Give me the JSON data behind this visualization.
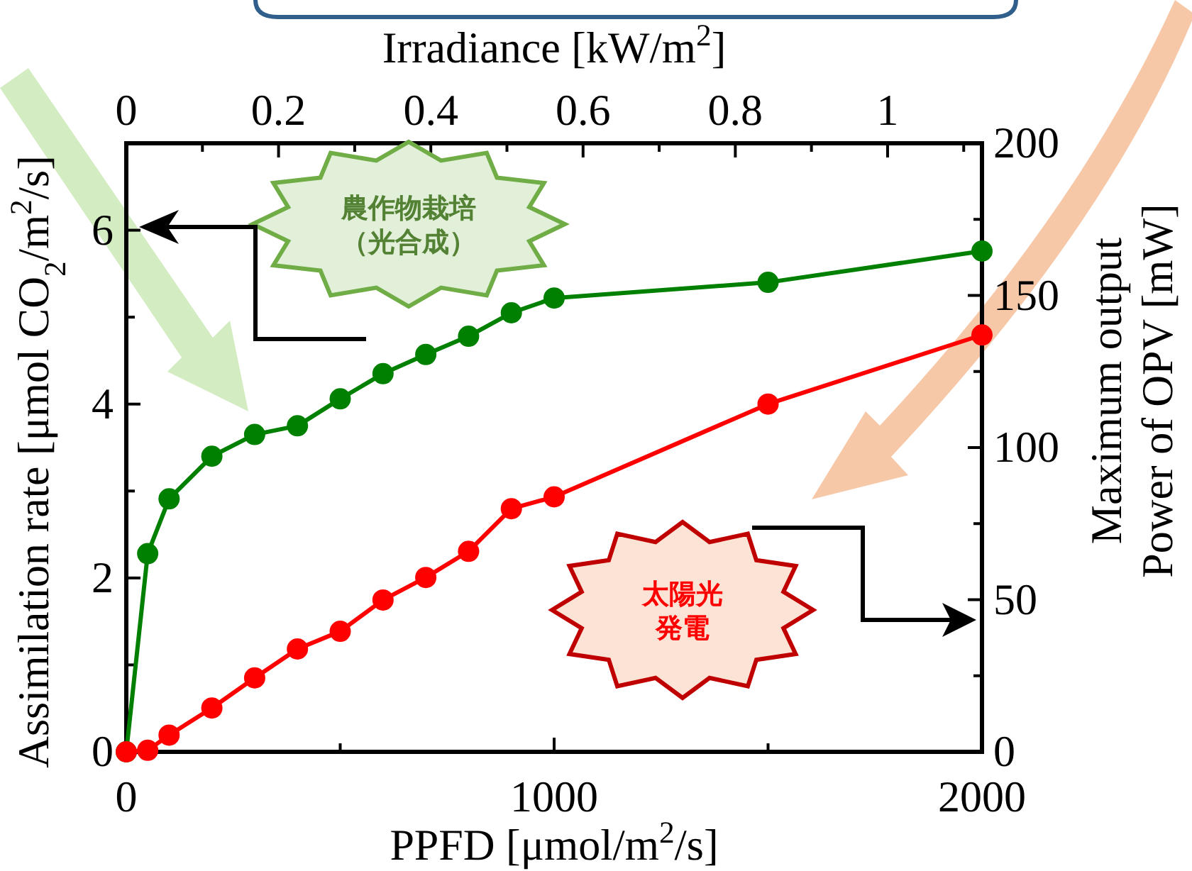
{
  "chart_data": {
    "type": "line",
    "xlabel": "PPFD [μmol/m$^{2}$/s]",
    "ylabel": "Assimilation rate [μmol CO$_{2}$/m$^{2}$/s]",
    "y2label": "Maximum output\nPower of OPV [mW]",
    "x2label": "Irradiance [kW/m$^{2}$]",
    "x": [
      0,
      50,
      100,
      200,
      300,
      400,
      500,
      600,
      700,
      800,
      900,
      1000,
      1500,
      2000
    ],
    "series": [
      {
        "color": "#008000",
        "values": [
          0,
          2.28,
          2.91,
          3.4,
          3.65,
          3.75,
          4.06,
          4.35,
          4.57,
          4.78,
          5.05,
          5.22,
          5.4,
          5.76
        ]
      },
      {
        "color": "#ff0000",
        "axis": "y2",
        "values": [
          0,
          0.5,
          5.5,
          14.4,
          24.3,
          33.8,
          39.6,
          49.9,
          57.3,
          65.9,
          79.9,
          83.8,
          114.3,
          137
        ]
      }
    ],
    "xlim": [
      0,
      2000
    ],
    "xticks": [
      0,
      {
        "value": 500,
        "label": null
      },
      1000,
      {
        "value": 1500,
        "label": null
      },
      2000
    ],
    "ylim": [
      0,
      7
    ],
    "yticks": [
      0,
      {
        "value": 1,
        "label": null
      },
      2,
      {
        "value": 3,
        "label": null
      },
      4,
      {
        "value": 5,
        "label": null
      },
      6,
      {
        "value": 7,
        "label": null
      }
    ],
    "y2lim": [
      0,
      200
    ],
    "y2ticks": [
      0,
      {
        "value": 25,
        "label": null
      },
      50,
      {
        "value": 75,
        "label": null
      },
      100,
      {
        "value": 125,
        "label": null
      },
      150,
      {
        "value": 175,
        "label": null
      },
      200
    ],
    "x2lim": [
      0,
      1.124
    ],
    "x2ticks": [
      0,
      {
        "value": 0.1,
        "label": null
      },
      0.2,
      {
        "value": 0.3,
        "label": null
      },
      0.4,
      {
        "value": 0.5,
        "label": null
      },
      0.6,
      {
        "value": 0.7,
        "label": null
      },
      0.8,
      {
        "value": 0.9,
        "label": null
      },
      1,
      {
        "value": 1.1,
        "label": null
      }
    ],
    "annotations": [
      "農作物栽培",
      "（光合成）",
      "太陽光",
      "発電"
    ],
    "marker": "circle",
    "line_style": "solid",
    "grid": false
  }
}
